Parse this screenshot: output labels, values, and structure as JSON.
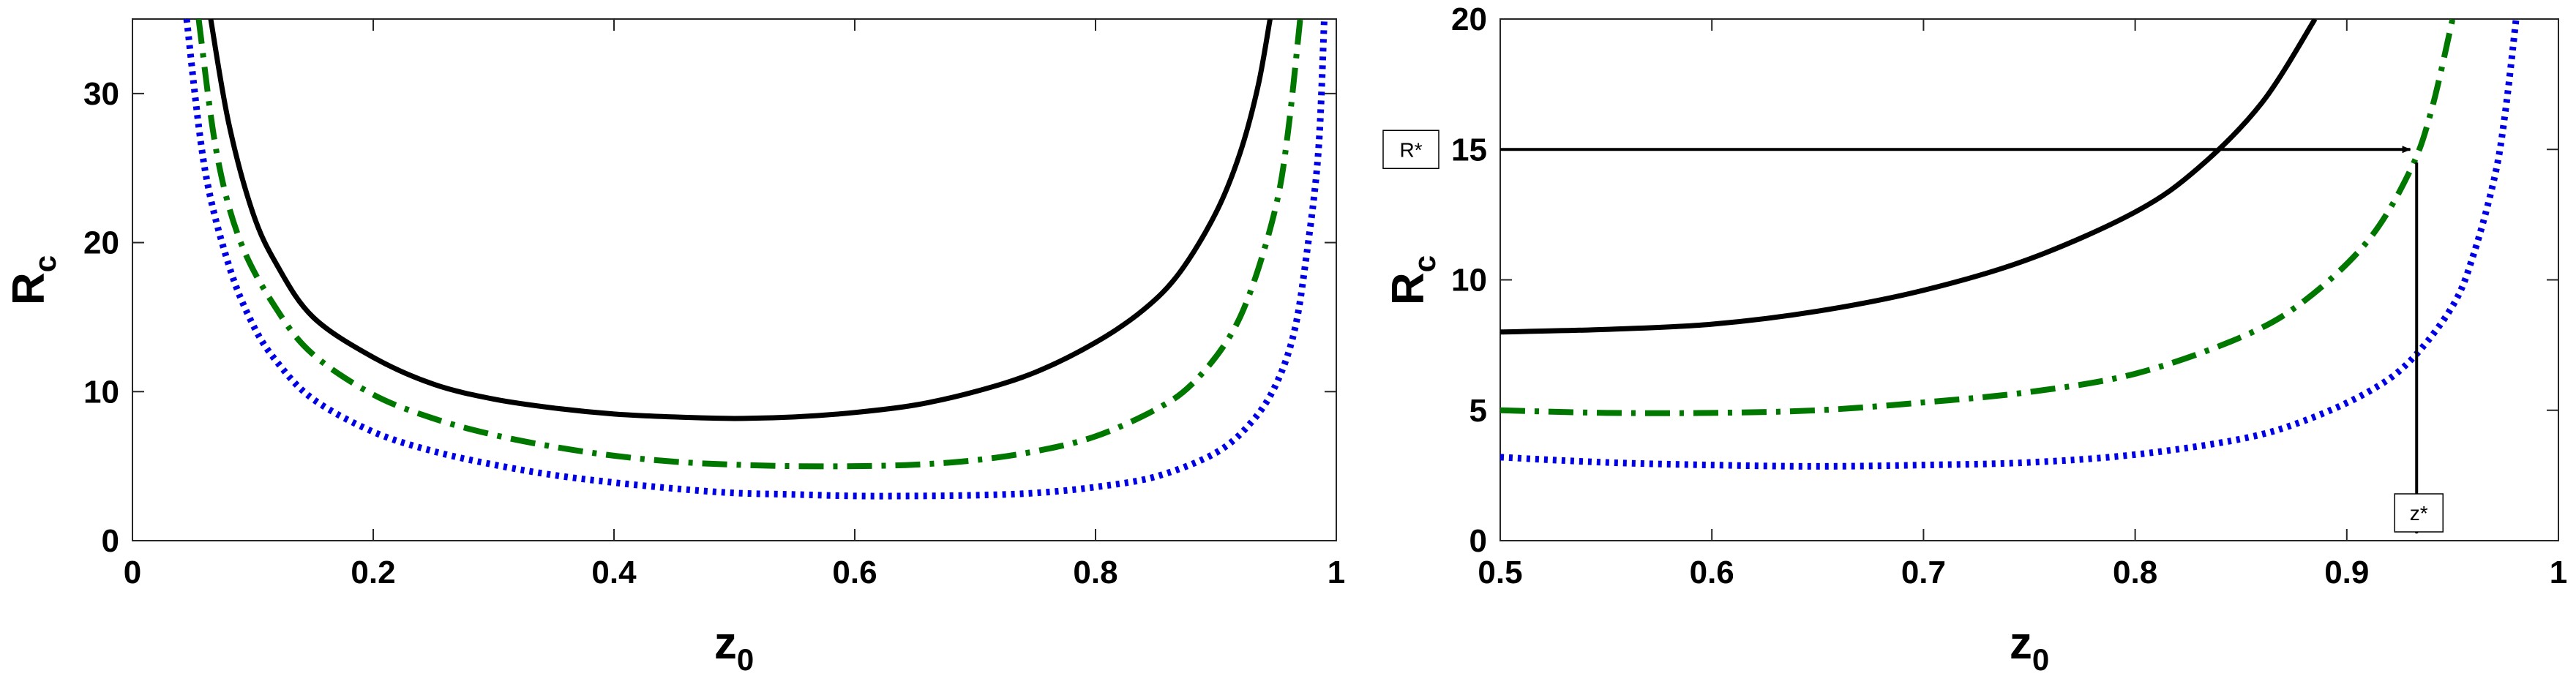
{
  "chart_data": [
    {
      "type": "line",
      "xlabel": "z",
      "xlabel_sub": "0",
      "ylabel": "R",
      "ylabel_sub": "c",
      "xlim": [
        0,
        1
      ],
      "ylim": [
        0,
        35
      ],
      "xticks": [
        0,
        0.2,
        0.4,
        0.6,
        0.8,
        1
      ],
      "xtick_labels": [
        "0",
        "0.2",
        "0.4",
        "0.6",
        "0.8",
        "1"
      ],
      "yticks": [
        0,
        10,
        20,
        30
      ],
      "ytick_labels": [
        "0",
        "10",
        "20",
        "30"
      ],
      "grid": false,
      "series": [
        {
          "name": "solid",
          "color": "#000000",
          "dash": "solid",
          "x": [
            0.065,
            0.08,
            0.1,
            0.12,
            0.15,
            0.2,
            0.25,
            0.3,
            0.35,
            0.4,
            0.45,
            0.5,
            0.55,
            0.6,
            0.65,
            0.7,
            0.75,
            0.8,
            0.84,
            0.87,
            0.9,
            0.92,
            0.935,
            0.945
          ],
          "y": [
            35,
            28,
            22,
            18.5,
            15,
            12.3,
            10.5,
            9.5,
            8.9,
            8.5,
            8.3,
            8.2,
            8.3,
            8.6,
            9.1,
            10,
            11.3,
            13.3,
            15.5,
            18,
            22,
            26,
            30.5,
            35
          ]
        },
        {
          "name": "dashdot",
          "color": "#007800",
          "dash": "dashdot",
          "x": [
            0.055,
            0.07,
            0.09,
            0.12,
            0.15,
            0.2,
            0.25,
            0.3,
            0.35,
            0.4,
            0.45,
            0.5,
            0.55,
            0.6,
            0.65,
            0.7,
            0.75,
            0.8,
            0.85,
            0.88,
            0.91,
            0.93,
            0.95,
            0.96,
            0.97
          ],
          "y": [
            35,
            26,
            20,
            15.5,
            12.5,
            9.8,
            8.2,
            7.1,
            6.3,
            5.7,
            5.3,
            5.1,
            5.0,
            5.0,
            5.1,
            5.4,
            6.0,
            7.0,
            8.8,
            10.5,
            13.5,
            17,
            22.5,
            27.5,
            35
          ]
        },
        {
          "name": "dotted",
          "color": "#0000e6",
          "dash": "dotted",
          "x": [
            0.045,
            0.06,
            0.08,
            0.1,
            0.12,
            0.15,
            0.2,
            0.25,
            0.3,
            0.35,
            0.4,
            0.45,
            0.5,
            0.55,
            0.6,
            0.65,
            0.7,
            0.75,
            0.8,
            0.85,
            0.9,
            0.93,
            0.95,
            0.965,
            0.975,
            0.985,
            0.99
          ],
          "y": [
            35,
            25,
            18.5,
            14.5,
            12,
            9.5,
            7.3,
            6.0,
            5.1,
            4.4,
            3.9,
            3.5,
            3.2,
            3.1,
            3.0,
            3.0,
            3.05,
            3.2,
            3.6,
            4.3,
            5.9,
            8.0,
            10.5,
            14,
            19,
            26,
            35
          ]
        }
      ]
    },
    {
      "type": "line",
      "xlabel": "z",
      "xlabel_sub": "0",
      "ylabel": "R",
      "ylabel_sub": "c",
      "xlim": [
        0.5,
        1
      ],
      "ylim": [
        0,
        20
      ],
      "xticks": [
        0.5,
        0.6,
        0.7,
        0.8,
        0.9,
        1
      ],
      "xtick_labels": [
        "0.5",
        "0.6",
        "0.7",
        "0.8",
        "0.9",
        "1"
      ],
      "yticks": [
        0,
        5,
        10,
        15,
        20
      ],
      "ytick_labels": [
        "0",
        "5",
        "10",
        "15",
        "20"
      ],
      "grid": false,
      "series": [
        {
          "name": "solid",
          "color": "#000000",
          "dash": "solid",
          "x": [
            0.5,
            0.55,
            0.6,
            0.65,
            0.7,
            0.75,
            0.8,
            0.83,
            0.86,
            0.885
          ],
          "y": [
            8.0,
            8.1,
            8.3,
            8.8,
            9.6,
            10.8,
            12.6,
            14.3,
            16.8,
            20
          ]
        },
        {
          "name": "dashdot",
          "color": "#007800",
          "dash": "dashdot",
          "x": [
            0.5,
            0.55,
            0.6,
            0.65,
            0.7,
            0.75,
            0.8,
            0.85,
            0.88,
            0.91,
            0.93,
            0.94,
            0.95
          ],
          "y": [
            5.0,
            4.9,
            4.9,
            5.0,
            5.3,
            5.7,
            6.4,
            7.8,
            9.2,
            11.5,
            14.2,
            16.5,
            20
          ]
        },
        {
          "name": "dotted",
          "color": "#0000e6",
          "dash": "dotted",
          "x": [
            0.5,
            0.55,
            0.6,
            0.65,
            0.7,
            0.75,
            0.8,
            0.85,
            0.88,
            0.91,
            0.93,
            0.95,
            0.96,
            0.97,
            0.975,
            0.98
          ],
          "y": [
            3.2,
            3.0,
            2.9,
            2.85,
            2.9,
            3.0,
            3.3,
            3.9,
            4.6,
            5.7,
            6.9,
            9.0,
            11.0,
            14.0,
            16.5,
            20
          ]
        }
      ],
      "annotations": [
        {
          "label": "R*",
          "y": 15,
          "arrow_from_x": 0.5,
          "arrow_to_x": 0.93
        },
        {
          "label": "z*",
          "x": 0.933,
          "arrow_from_y": 14.5,
          "arrow_to_y": 0
        }
      ]
    }
  ]
}
